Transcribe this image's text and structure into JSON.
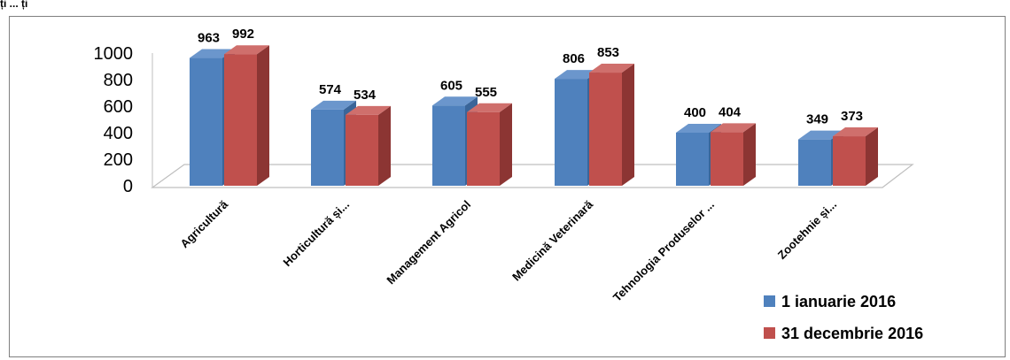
{
  "page": {
    "top_fragment": "ți  ... ți"
  },
  "chart_data": {
    "type": "bar",
    "style": "3d-clustered-column",
    "categories": [
      "Agricultură",
      "Horticultură și...",
      "Management Agricol",
      "Medicină Veterinară",
      "Tehnologia Produselor ...",
      "Zootehnie și..."
    ],
    "series": [
      {
        "name": "1 ianuarie 2016",
        "values": [
          963,
          574,
          605,
          806,
          400,
          349
        ],
        "color": "#4f81bd",
        "side": "#3a6599",
        "top": "#6b96cc"
      },
      {
        "name": "31 decembrie 2016",
        "values": [
          992,
          534,
          555,
          853,
          404,
          373
        ],
        "color": "#c0504d",
        "side": "#8c3533",
        "top": "#cf6f6c"
      }
    ],
    "yticks": [
      "0",
      "200",
      "400",
      "600",
      "800",
      "1000"
    ],
    "ylim": [
      0,
      1000
    ],
    "legend_position": "bottom-right",
    "gridlines": false
  }
}
